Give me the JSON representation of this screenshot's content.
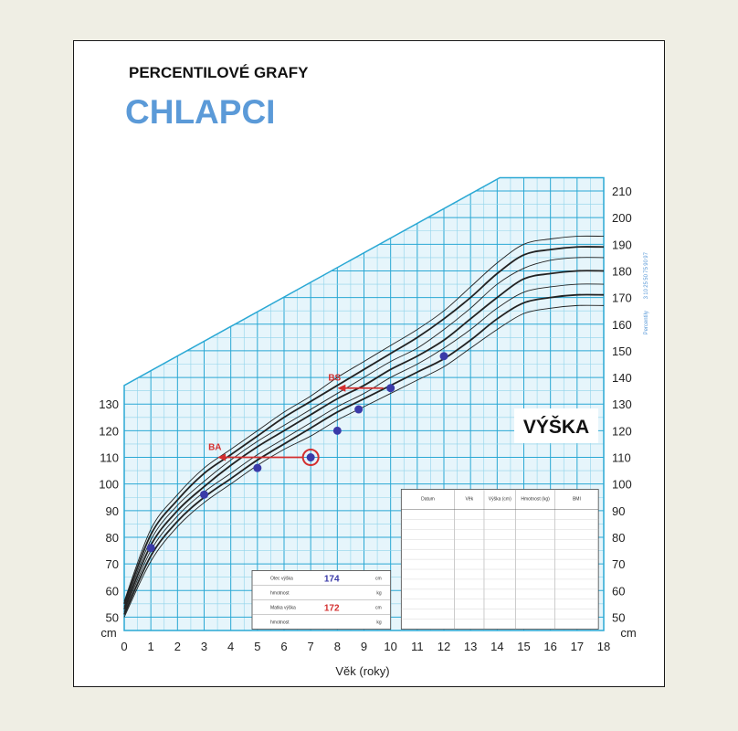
{
  "colors": {
    "grid_minor": "#8fd3ea",
    "grid_major": "#2aa8d4",
    "chart_fill": "#e6f5fb",
    "curve": "#222222",
    "measurement": "#3a3aa8",
    "annotation": "#d32f2f",
    "title_blue": "#5b9ad8"
  },
  "chart_data": {
    "type": "line",
    "title": "PERCENTILOVÉ GRAFY",
    "subtitle": "CHLAPCI",
    "panel_label": "VÝŠKA",
    "xlabel": "Věk (roky)",
    "ylabel": "cm",
    "xlim": [
      0,
      18
    ],
    "ylim": [
      45,
      215
    ],
    "x_ticks": [
      0,
      1,
      2,
      3,
      4,
      5,
      6,
      7,
      8,
      9,
      10,
      11,
      12,
      13,
      14,
      15,
      16,
      17,
      18
    ],
    "y_ticks_left": [
      50,
      60,
      70,
      80,
      90,
      100,
      110,
      120,
      130
    ],
    "y_ticks_right": [
      50,
      60,
      70,
      80,
      90,
      100,
      110,
      120,
      130,
      140,
      150,
      160,
      170,
      180,
      190,
      200,
      210
    ],
    "grid": true,
    "x": [
      0,
      1,
      2,
      3,
      4,
      5,
      6,
      7,
      8,
      9,
      10,
      11,
      12,
      13,
      14,
      15,
      16,
      17,
      18
    ],
    "series": [
      {
        "values": [
          50,
          71,
          84,
          93,
          100,
          107,
          113,
          118,
          124,
          129,
          134,
          139,
          144,
          151,
          158,
          164,
          166,
          167,
          167
        ],
        "weight": 1
      },
      {
        "values": [
          51,
          73,
          86,
          95,
          102,
          109,
          115,
          121,
          127,
          132,
          137,
          142,
          147,
          154,
          162,
          168,
          170,
          171,
          171
        ],
        "weight": 2
      },
      {
        "values": [
          52,
          75,
          88,
          97,
          104,
          111,
          117,
          123,
          129,
          134,
          140,
          145,
          151,
          158,
          166,
          172,
          174,
          175,
          175
        ],
        "weight": 1
      },
      {
        "values": [
          53,
          77,
          90,
          99,
          107,
          114,
          120,
          126,
          132,
          137,
          143,
          148,
          154,
          162,
          170,
          177,
          179,
          180,
          180
        ],
        "weight": 2
      },
      {
        "values": [
          54,
          79,
          92,
          101,
          109,
          116,
          122,
          128,
          134,
          140,
          146,
          151,
          158,
          166,
          175,
          181,
          184,
          185,
          185
        ],
        "weight": 1
      },
      {
        "values": [
          55,
          81,
          94,
          104,
          111,
          118,
          125,
          131,
          137,
          143,
          149,
          155,
          162,
          170,
          179,
          186,
          188,
          189,
          189
        ],
        "weight": 2
      },
      {
        "values": [
          56,
          83,
          96,
          106,
          113,
          120,
          127,
          133,
          140,
          146,
          152,
          158,
          165,
          174,
          183,
          190,
          192,
          193,
          193
        ],
        "weight": 1
      }
    ],
    "measurements": {
      "x": [
        1,
        3,
        5,
        7,
        8,
        8.8,
        10,
        12
      ],
      "y": [
        76,
        96,
        106,
        110,
        120,
        128,
        136,
        148
      ],
      "highlighted_index": 3
    },
    "annotations": [
      {
        "label": "BA",
        "from": [
          7,
          110
        ],
        "to": [
          3.5,
          110
        ]
      },
      {
        "label": "BS",
        "from": [
          10,
          136
        ],
        "to": [
          8,
          136
        ]
      }
    ],
    "right_axis_legend": [
      "97",
      "90",
      "75",
      "50",
      "25",
      "10",
      "3",
      "Percentily"
    ],
    "parents_box": {
      "rows": [
        {
          "label": "Otec výška",
          "value": "174",
          "unit": "cm",
          "value_color": "#3a3aa8"
        },
        {
          "label": "hmotnost",
          "value": "",
          "unit": "kg"
        },
        {
          "label": "Matka výška",
          "value": "172",
          "unit": "cm",
          "value_color": "#d32f2f"
        },
        {
          "label": "hmotnost",
          "value": "",
          "unit": "kg"
        }
      ]
    },
    "record_table": {
      "headers": [
        "Datum",
        "Věk",
        "Výška (cm)",
        "Hmotnost (kg)",
        "BMI"
      ]
    }
  }
}
